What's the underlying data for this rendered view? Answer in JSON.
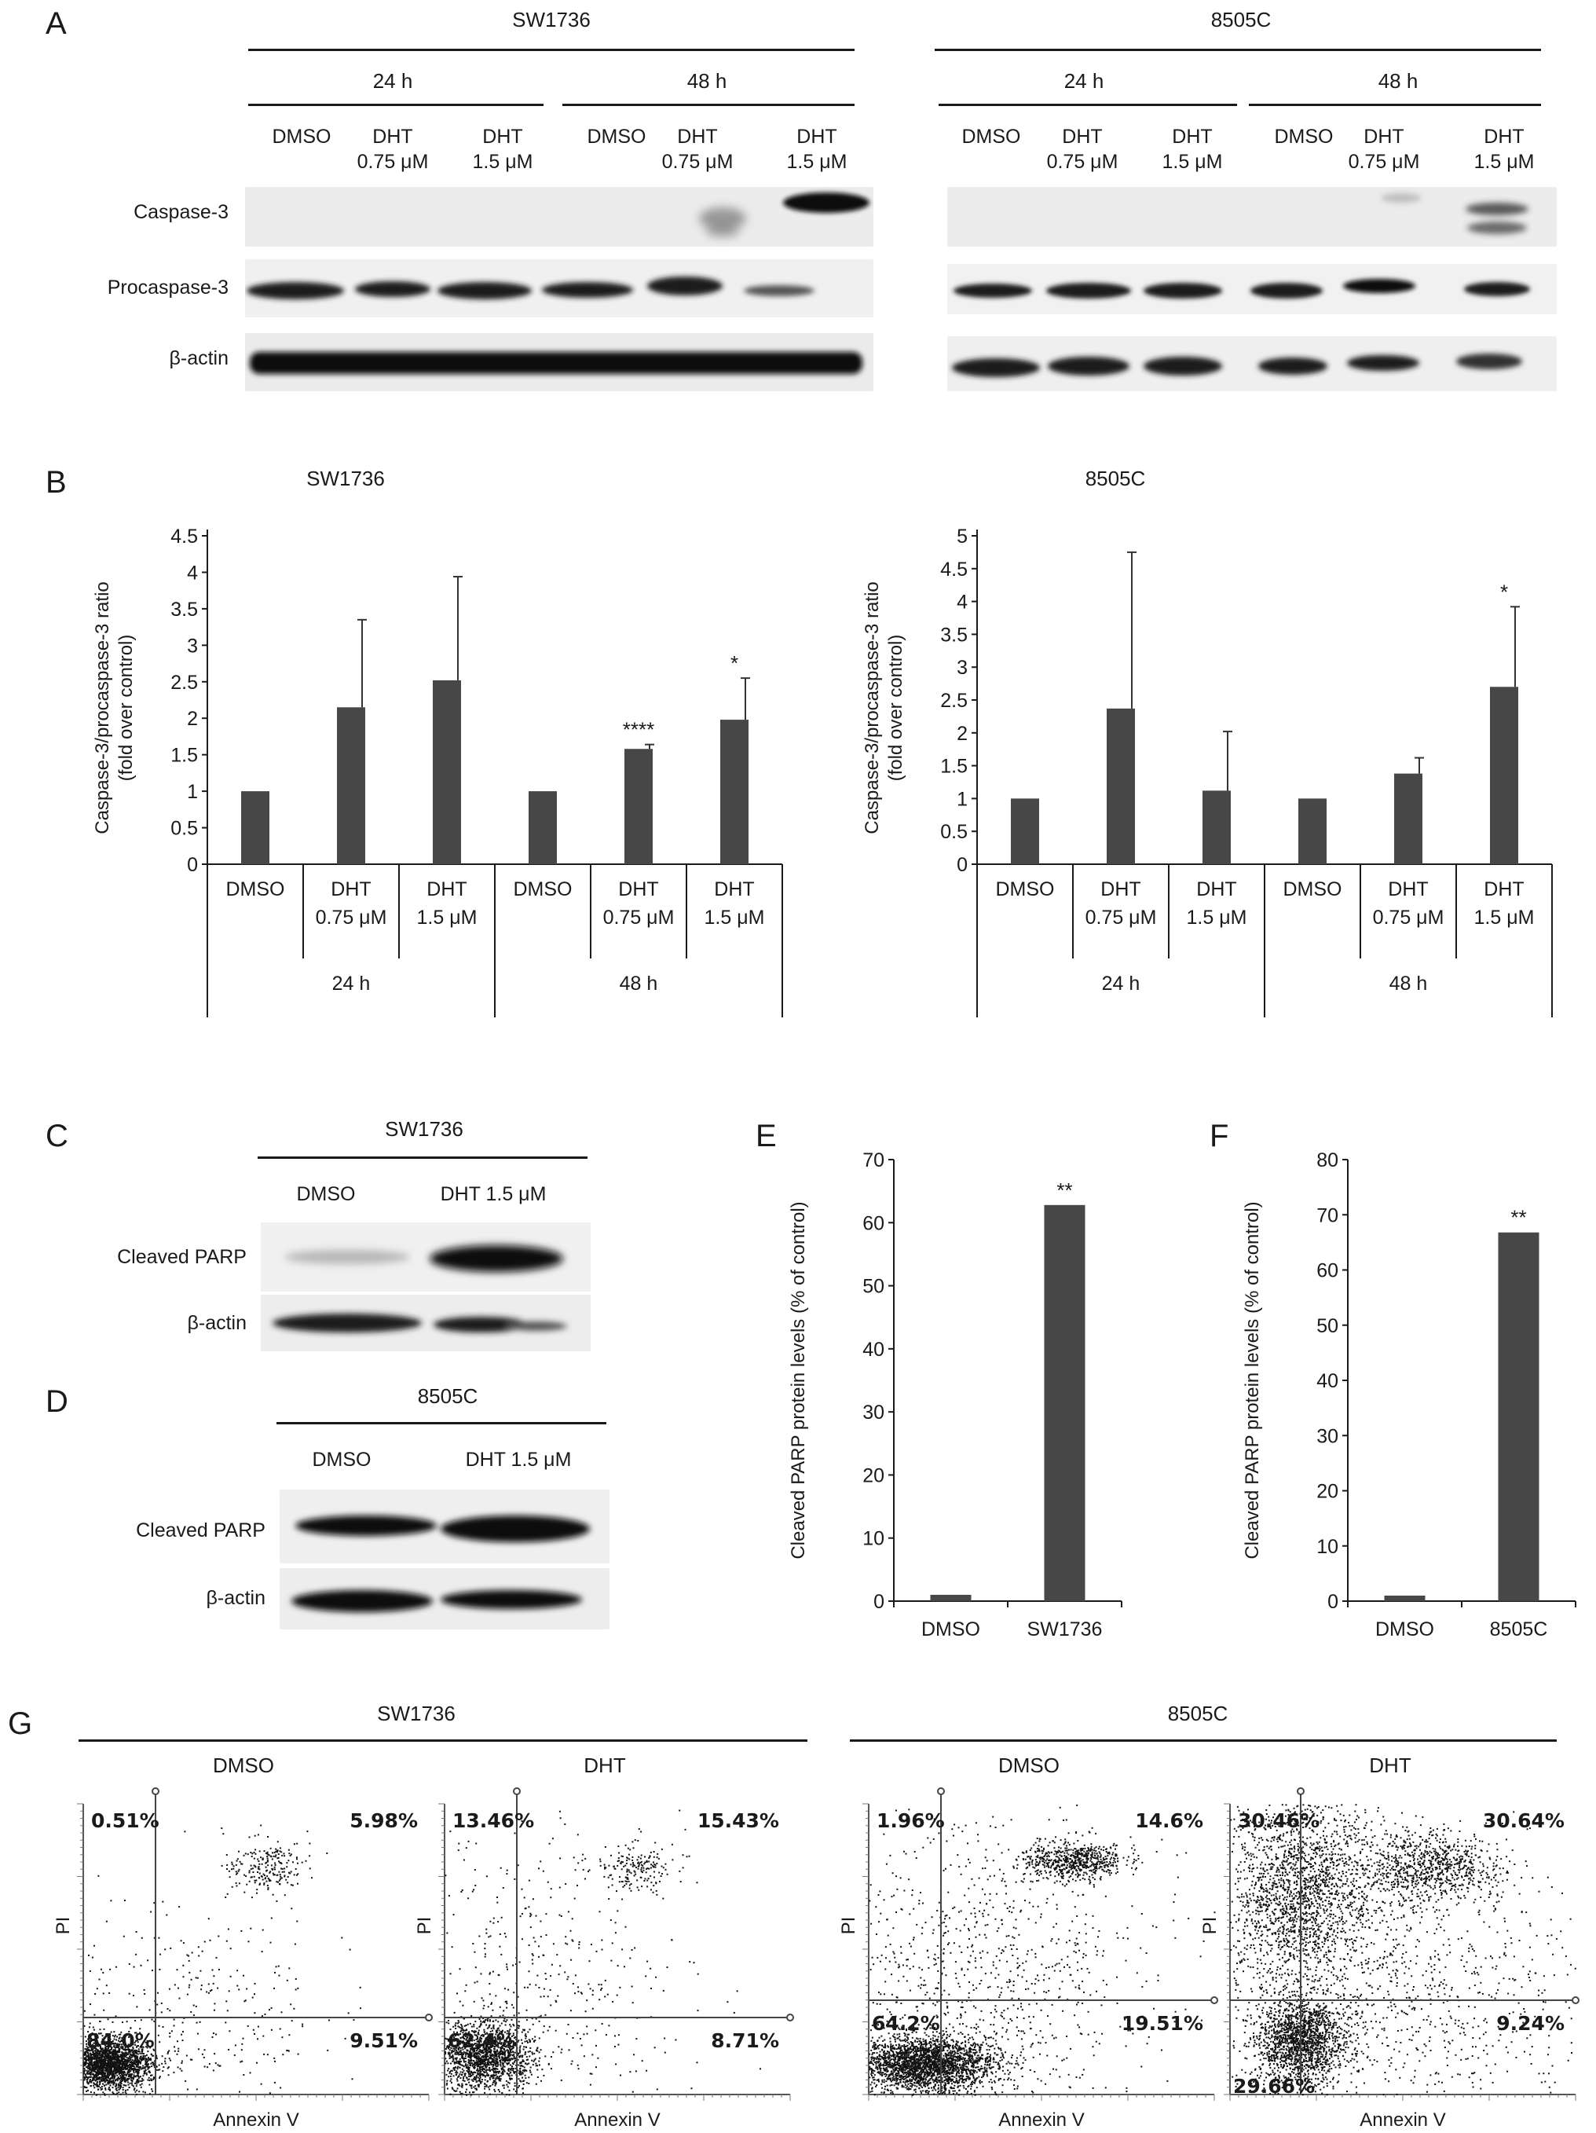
{
  "panels": {
    "A": {
      "letter": "A",
      "cells": [
        {
          "name": "SW1736",
          "times": [
            "24 h",
            "48 h"
          ]
        },
        {
          "name": "8505C",
          "times": [
            "24 h",
            "48 h"
          ]
        }
      ],
      "lanes": [
        [
          "DMSO",
          ""
        ],
        [
          "DHT",
          "0.75 μM"
        ],
        [
          "DHT",
          "1.5 μM"
        ],
        [
          "DMSO",
          ""
        ],
        [
          "DHT",
          "0.75 μM"
        ],
        [
          "DHT",
          "1.5 μM"
        ]
      ],
      "rows": [
        "Caspase-3",
        "Procaspase-3",
        "β-actin"
      ]
    },
    "C": {
      "letter": "C",
      "cell": "SW1736",
      "lanes": [
        "DMSO",
        "DHT 1.5 μM"
      ],
      "rows": [
        "Cleaved PARP",
        "β-actin"
      ]
    },
    "D": {
      "letter": "D",
      "cell": "8505C",
      "lanes": [
        "DMSO",
        "DHT 1.5 μM"
      ],
      "rows": [
        "Cleaved PARP",
        "β-actin"
      ]
    },
    "G": {
      "letter": "G",
      "cells": [
        "SW1736",
        "8505C"
      ],
      "plots": [
        {
          "title": "DMSO",
          "xlabel": "Annexin V",
          "ylabel": "PI",
          "quadrants": {
            "ul": "0.51%",
            "ur": "5.98%",
            "ll": "84.0%",
            "lr": "9.51%"
          }
        },
        {
          "title": "DHT",
          "xlabel": "Annexin V",
          "ylabel": "PI",
          "quadrants": {
            "ul": "13.46%",
            "ur": "15.43%",
            "ll": "62.4%",
            "lr": "8.71%"
          }
        },
        {
          "title": "DMSO",
          "xlabel": "Annexin V",
          "ylabel": "PI",
          "quadrants": {
            "ul": "1.96%",
            "ur": "14.6%",
            "ll": "64.2%",
            "lr": "19.51%"
          }
        },
        {
          "title": "DHT",
          "xlabel": "Annexin V",
          "ylabel": "PI",
          "quadrants": {
            "ul": "30.46%",
            "ur": "30.64%",
            "ll": "29.66%",
            "lr": "9.24%"
          }
        }
      ]
    }
  },
  "colors": {
    "bar": "#474747",
    "text": "#1a1a1a"
  },
  "chart_data": [
    {
      "panel": "B",
      "letter": "B",
      "type": "bar",
      "title": "SW1736",
      "ylabel": [
        "Caspase-3/procaspase-3 ratio",
        "(fold over control)"
      ],
      "ylim": [
        0,
        4.5
      ],
      "ticks": [
        0,
        0.5,
        1,
        1.5,
        2,
        2.5,
        3,
        3.5,
        4,
        4.5
      ],
      "tick_labels": [
        "0",
        "0.5",
        "1",
        "1.5",
        "2",
        "2.5",
        "3",
        "3.5",
        "4",
        "4.5"
      ],
      "categories": [
        [
          "DMSO",
          ""
        ],
        [
          "DHT",
          "0.75 μM"
        ],
        [
          "DHT",
          "1.5 μM"
        ],
        [
          "DMSO",
          ""
        ],
        [
          "DHT",
          "0.75 μM"
        ],
        [
          "DHT",
          "1.5 μM"
        ]
      ],
      "groups": [
        "24 h",
        "48 h"
      ],
      "values": [
        1.0,
        2.15,
        2.52,
        1.0,
        1.58,
        1.98
      ],
      "errors": [
        0,
        1.2,
        1.42,
        0,
        0.06,
        0.57
      ],
      "significance": [
        "",
        "",
        "",
        "",
        "****",
        "*"
      ]
    },
    {
      "panel": "B",
      "letter": "",
      "type": "bar",
      "title": "8505C",
      "ylabel": [
        "Caspase-3/procaspase-3 ratio",
        "(fold over control)"
      ],
      "ylim": [
        0,
        5
      ],
      "ticks": [
        0,
        0.5,
        1,
        1.5,
        2,
        2.5,
        3,
        3.5,
        4,
        4.5,
        5
      ],
      "tick_labels": [
        "0",
        "0.5",
        "1",
        "1.5",
        "2",
        "2.5",
        "3",
        "3.5",
        "4",
        "4.5",
        "5"
      ],
      "categories": [
        [
          "DMSO",
          ""
        ],
        [
          "DHT",
          "0.75 μM"
        ],
        [
          "DHT",
          "1.5 μM"
        ],
        [
          "DMSO",
          ""
        ],
        [
          "DHT",
          "0.75 μM"
        ],
        [
          "DHT",
          "1.5 μM"
        ]
      ],
      "groups": [
        "24 h",
        "48 h"
      ],
      "values": [
        1.0,
        2.37,
        1.12,
        1.0,
        1.38,
        2.7
      ],
      "errors": [
        0,
        2.38,
        0.9,
        0,
        0.24,
        1.22
      ],
      "significance": [
        "",
        "",
        "",
        "",
        "",
        "*"
      ]
    },
    {
      "panel": "E",
      "letter": "E",
      "type": "bar",
      "title": "",
      "ylabel": [
        "Cleaved PARP protein levels (% of control)"
      ],
      "ylim": [
        0,
        70
      ],
      "ticks": [
        0,
        10,
        20,
        30,
        40,
        50,
        60,
        70
      ],
      "tick_labels": [
        "0",
        "10",
        "20",
        "30",
        "40",
        "50",
        "60",
        "70"
      ],
      "categories": [
        "DMSO",
        "SW1736"
      ],
      "values": [
        1,
        62.8
      ],
      "significance": [
        "",
        "**"
      ]
    },
    {
      "panel": "F",
      "letter": "F",
      "type": "bar",
      "title": "",
      "ylabel": [
        "Cleaved PARP protein levels (% of control)"
      ],
      "ylim": [
        0,
        80
      ],
      "ticks": [
        0,
        10,
        20,
        30,
        40,
        50,
        60,
        70,
        80
      ],
      "tick_labels": [
        "0",
        "10",
        "20",
        "30",
        "40",
        "50",
        "60",
        "70",
        "80"
      ],
      "categories": [
        "DMSO",
        "8505C"
      ],
      "values": [
        1,
        66.8
      ],
      "significance": [
        "",
        "**"
      ]
    }
  ]
}
